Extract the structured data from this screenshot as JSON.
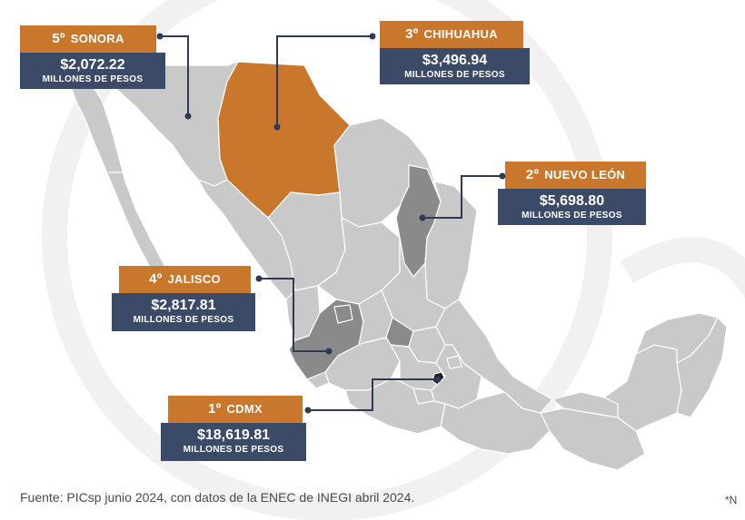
{
  "map": {
    "states": [
      {
        "id": "sonora",
        "highlight": false
      },
      {
        "id": "chihuahua",
        "highlight": true
      },
      {
        "id": "nuevo-leon",
        "highlight": false
      },
      {
        "id": "jalisco",
        "highlight": false
      },
      {
        "id": "cdmx",
        "highlight": false
      }
    ],
    "colors": {
      "base_fill": "#c9c9c9",
      "state_border": "#ffffff",
      "emphasis_fill": "#8a8a8a",
      "highlight_fill": "#c8772c",
      "cdmx_fill": "#1f1f1f",
      "leader_line": "#2c3a55",
      "tag_bg": "#c8772c",
      "value_bg": "#3b4a66"
    }
  },
  "callouts": [
    {
      "rank": "5º",
      "state": "SONORA",
      "amount": "$2,072.22",
      "unit": "MILLONES DE PESOS"
    },
    {
      "rank": "3º",
      "state": "CHIHUAHUA",
      "amount": "$3,496.94",
      "unit": "MILLONES DE PESOS"
    },
    {
      "rank": "2º",
      "state": "NUEVO LEÓN",
      "amount": "$5,698.80",
      "unit": "MILLONES DE PESOS"
    },
    {
      "rank": "4º",
      "state": "JALISCO",
      "amount": "$2,817.81",
      "unit": "MILLONES DE PESOS"
    },
    {
      "rank": "1º",
      "state": "CDMX",
      "amount": "$18,619.81",
      "unit": "MILLONES DE PESOS"
    }
  ],
  "footer": {
    "source": "Fuente: PICsp junio 2024, con datos de la ENEC de INEGI abril 2024.",
    "note": "*N"
  }
}
